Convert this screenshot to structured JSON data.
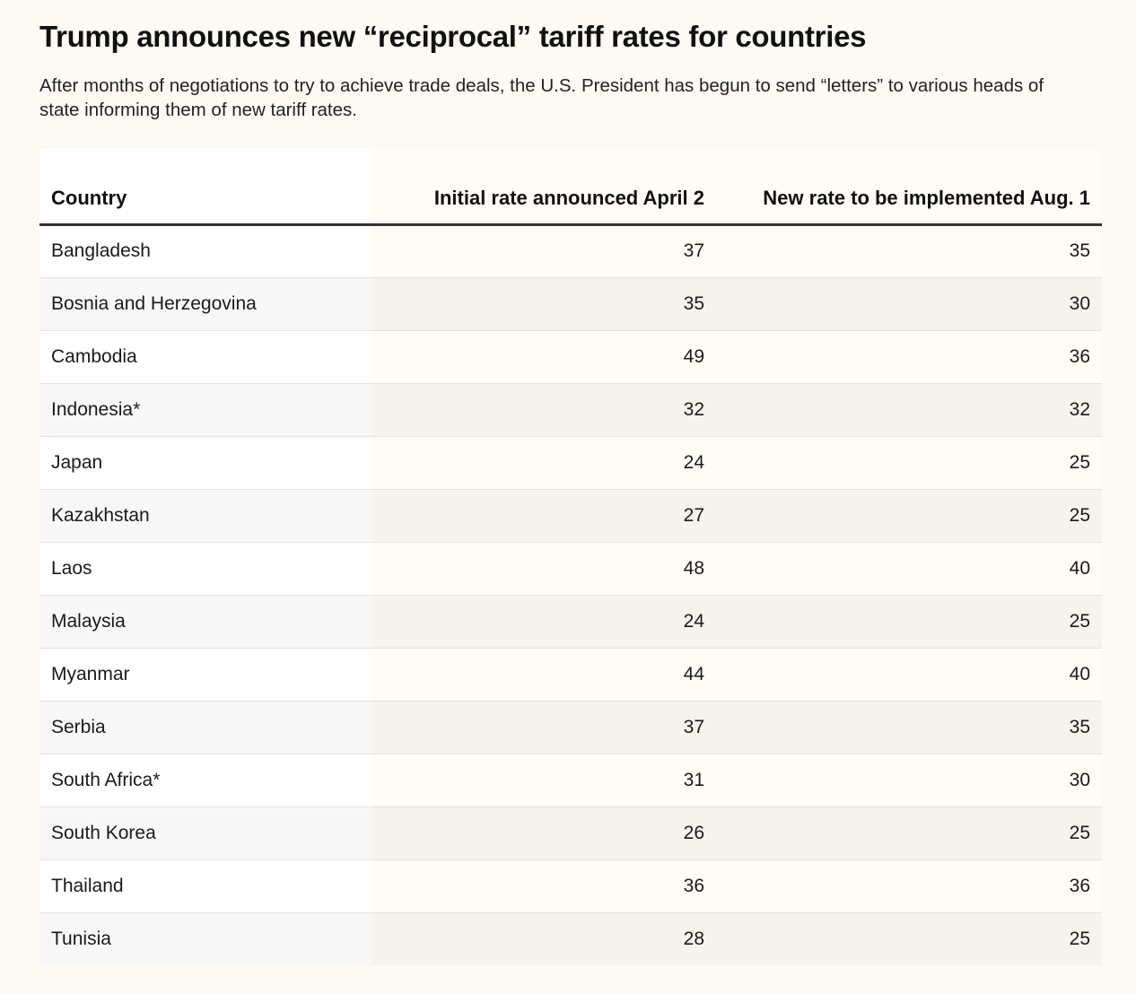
{
  "article": {
    "title": "Trump announces new “reciprocal” tariff rates for countries",
    "subtitle": "After months of negotiations to try to achieve trade deals, the U.S. President has begun to send “letters” to various heads of state informing them of new tariff rates."
  },
  "table": {
    "headers": {
      "country": "Country",
      "initial": "Initial rate announced April 2",
      "new": "New rate to be implemented Aug. 1"
    },
    "rows": [
      {
        "country": "Bangladesh",
        "initial": "37",
        "new": "35"
      },
      {
        "country": "Bosnia and Herzegovina",
        "initial": "35",
        "new": "30"
      },
      {
        "country": "Cambodia",
        "initial": "49",
        "new": "36"
      },
      {
        "country": "Indonesia*",
        "initial": "32",
        "new": "32"
      },
      {
        "country": "Japan",
        "initial": "24",
        "new": "25"
      },
      {
        "country": "Kazakhstan",
        "initial": "27",
        "new": "25"
      },
      {
        "country": "Laos",
        "initial": "48",
        "new": "40"
      },
      {
        "country": "Malaysia",
        "initial": "24",
        "new": "25"
      },
      {
        "country": "Myanmar",
        "initial": "44",
        "new": "40"
      },
      {
        "country": "Serbia",
        "initial": "37",
        "new": "35"
      },
      {
        "country": "South Africa*",
        "initial": "31",
        "new": "30"
      },
      {
        "country": "South Korea",
        "initial": "26",
        "new": "25"
      },
      {
        "country": "Thailand",
        "initial": "36",
        "new": "36"
      },
      {
        "country": "Tunisia",
        "initial": "28",
        "new": "25"
      }
    ]
  },
  "colors": {
    "page_background": "#fdfaf4",
    "header_rule": "#333333",
    "row_stripe": "#f7f7f7"
  }
}
